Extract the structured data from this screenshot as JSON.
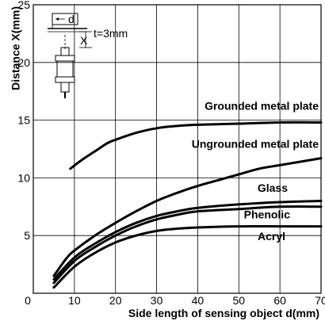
{
  "chart_data": {
    "type": "line",
    "xlabel": "Side length of sensing object d(mm)",
    "ylabel": "Distance X(mm)",
    "xlim": [
      0,
      70
    ],
    "ylim": [
      0,
      25
    ],
    "xticks": [
      0,
      10,
      20,
      30,
      40,
      50,
      60,
      70
    ],
    "yticks": [
      5,
      10,
      15,
      20,
      25
    ],
    "grid": true,
    "series": [
      {
        "name": "Grounded metal plate",
        "x": [
          9,
          12,
          15,
          18,
          20,
          25,
          30,
          35,
          40,
          50,
          60,
          70
        ],
        "y": [
          10.8,
          11.6,
          12.3,
          13.0,
          13.3,
          13.9,
          14.3,
          14.5,
          14.6,
          14.7,
          14.8,
          14.8
        ]
      },
      {
        "name": "Ungrounded metal plate",
        "x": [
          5,
          8,
          10,
          15,
          20,
          25,
          30,
          35,
          40,
          45,
          50,
          55,
          60,
          65,
          70
        ],
        "y": [
          1.5,
          3.0,
          3.7,
          5.0,
          6.1,
          7.1,
          8.0,
          8.7,
          9.3,
          9.8,
          10.3,
          10.8,
          11.1,
          11.4,
          11.7
        ]
      },
      {
        "name": "Glass",
        "x": [
          5,
          10,
          15,
          20,
          25,
          30,
          35,
          40,
          50,
          60,
          70
        ],
        "y": [
          1.2,
          3.1,
          4.3,
          5.3,
          6.1,
          6.7,
          7.1,
          7.4,
          7.7,
          7.9,
          8.0
        ]
      },
      {
        "name": "Phenolic",
        "x": [
          5,
          10,
          15,
          20,
          25,
          30,
          35,
          40,
          50,
          60,
          70
        ],
        "y": [
          0.9,
          2.8,
          4.0,
          5.0,
          5.8,
          6.4,
          6.8,
          7.1,
          7.3,
          7.5,
          7.5
        ]
      },
      {
        "name": "Acryl",
        "x": [
          5,
          10,
          15,
          20,
          25,
          30,
          35,
          40,
          50,
          60,
          70
        ],
        "y": [
          0.5,
          2.3,
          3.5,
          4.4,
          5.0,
          5.4,
          5.6,
          5.7,
          5.8,
          5.8,
          5.8
        ]
      }
    ],
    "inset": {
      "d_label": "d",
      "x_label": "X",
      "thickness_label": "t=3mm"
    }
  }
}
